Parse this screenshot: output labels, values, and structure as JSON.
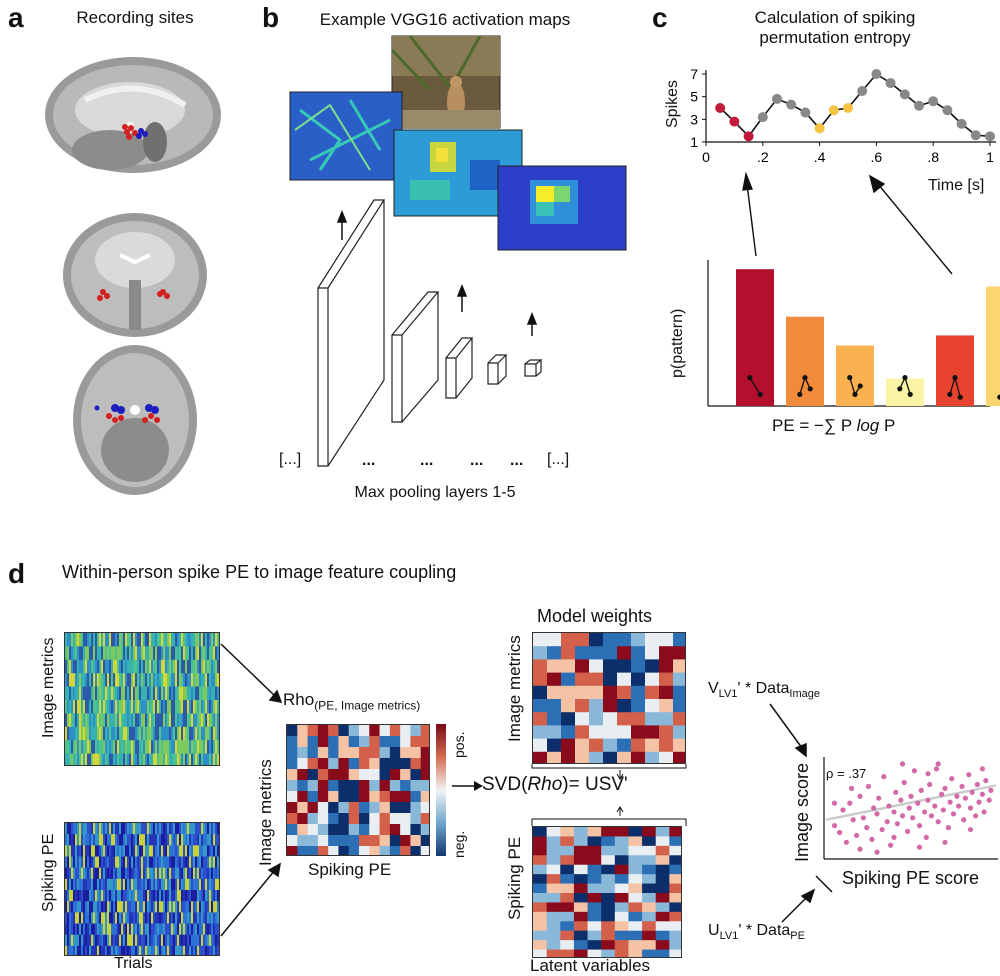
{
  "panels": {
    "a": {
      "letter": "a",
      "title": "Recording sites"
    },
    "b": {
      "letter": "b",
      "title": "Example VGG16 activation maps",
      "caption": "Max pooling layers 1-5",
      "bracket_left": "[...]",
      "bracket_right": "[...]",
      "dots": "..."
    },
    "c": {
      "letter": "c",
      "title_line1": "Calculation of spiking",
      "title_line2": "permutation entropy",
      "ylabel": "Spikes",
      "xlabel": "Time [s]",
      "bar_ylabel": "p(pattern)",
      "formula_pre": "PE = −∑ P ",
      "formula_log": "log",
      "formula_post": " P"
    },
    "d": {
      "letter": "d",
      "title": "Within-person spike PE to image feature coupling",
      "image_metrics": "Image metrics",
      "spiking_pe": "Spiking PE",
      "trials": "Trials",
      "rho_main": "Rho",
      "rho_sub": "(PE, Image metrics)",
      "pos": "pos.",
      "neg": "neg.",
      "svd_pre": "SVD(",
      "svd_rho": "Rho",
      "svd_post": ")= USV'",
      "model_weights": "Model weights",
      "latent_variables": "Latent variables",
      "v_pre": "V",
      "v_sub": "LV1",
      "v_mid": "' * Data",
      "v_sub2": "Image",
      "u_pre": "U",
      "u_sub": "LV1",
      "u_mid": "' * Data",
      "u_sub2": "PE",
      "image_score": "Image score",
      "spiking_pe_score": "Spiking PE score",
      "rho_value": "ρ = .37"
    }
  },
  "chart_data": [
    {
      "type": "line",
      "title": "Calculation of spiking permutation entropy",
      "xlabel": "Time [s]",
      "ylabel": "Spikes",
      "xlim": [
        0,
        1
      ],
      "ylim": [
        1,
        7
      ],
      "xticks": [
        "0",
        ".2",
        ".4",
        ".6",
        ".8",
        "1"
      ],
      "yticks": [
        "1",
        "3",
        "5",
        "7"
      ],
      "x": [
        0.05,
        0.1,
        0.15,
        0.2,
        0.25,
        0.3,
        0.35,
        0.4,
        0.45,
        0.5,
        0.55,
        0.6,
        0.65,
        0.7,
        0.75,
        0.8,
        0.85,
        0.9,
        0.95,
        1.0
      ],
      "y": [
        4,
        2.8,
        1.5,
        3.2,
        4.8,
        4.3,
        3.6,
        2.2,
        3.8,
        4.0,
        5.5,
        7.0,
        6.2,
        5.2,
        4.2,
        4.6,
        3.8,
        2.6,
        1.6,
        1.5
      ],
      "point_colors": [
        "#c21a3a",
        "#c21a3a",
        "#c21a3a",
        "#888888",
        "#888888",
        "#888888",
        "#888888",
        "#f5c542",
        "#f5c542",
        "#f5c542",
        "#888888",
        "#888888",
        "#888888",
        "#888888",
        "#888888",
        "#888888",
        "#888888",
        "#888888",
        "#888888",
        "#888888"
      ]
    },
    {
      "type": "bar",
      "ylabel": "p(pattern)",
      "values": [
        0.95,
        0.62,
        0.42,
        0.19,
        0.49,
        0.83
      ],
      "colors": [
        "#b4102e",
        "#f28a3b",
        "#f9b24f",
        "#fbf4a4",
        "#e8432e",
        "#fdd570"
      ]
    },
    {
      "type": "scatter",
      "xlabel": "Spiking PE score",
      "ylabel": "Image score",
      "annotation": "ρ = .37",
      "point_color": "#d26aa8",
      "fit_color": "#c8cdca",
      "fit": {
        "intercept": 0.38,
        "slope": 0.35
      },
      "points": [
        [
          0.05,
          0.32
        ],
        [
          0.08,
          0.25
        ],
        [
          0.1,
          0.48
        ],
        [
          0.12,
          0.15
        ],
        [
          0.14,
          0.55
        ],
        [
          0.16,
          0.38
        ],
        [
          0.18,
          0.22
        ],
        [
          0.2,
          0.62
        ],
        [
          0.22,
          0.4
        ],
        [
          0.24,
          0.3
        ],
        [
          0.25,
          0.72
        ],
        [
          0.27,
          0.18
        ],
        [
          0.28,
          0.5
        ],
        [
          0.3,
          0.44
        ],
        [
          0.31,
          0.6
        ],
        [
          0.33,
          0.28
        ],
        [
          0.34,
          0.82
        ],
        [
          0.36,
          0.36
        ],
        [
          0.37,
          0.52
        ],
        [
          0.38,
          0.12
        ],
        [
          0.4,
          0.46
        ],
        [
          0.41,
          0.66
        ],
        [
          0.42,
          0.34
        ],
        [
          0.44,
          0.58
        ],
        [
          0.45,
          0.42
        ],
        [
          0.46,
          0.76
        ],
        [
          0.48,
          0.26
        ],
        [
          0.49,
          0.5
        ],
        [
          0.5,
          0.62
        ],
        [
          0.51,
          0.4
        ],
        [
          0.52,
          0.88
        ],
        [
          0.54,
          0.55
        ],
        [
          0.55,
          0.32
        ],
        [
          0.56,
          0.68
        ],
        [
          0.58,
          0.46
        ],
        [
          0.59,
          0.2
        ],
        [
          0.6,
          0.58
        ],
        [
          0.61,
          0.74
        ],
        [
          0.62,
          0.42
        ],
        [
          0.64,
          0.52
        ],
        [
          0.65,
          0.9
        ],
        [
          0.66,
          0.36
        ],
        [
          0.68,
          0.64
        ],
        [
          0.69,
          0.48
        ],
        [
          0.7,
          0.7
        ],
        [
          0.72,
          0.3
        ],
        [
          0.73,
          0.56
        ],
        [
          0.74,
          0.8
        ],
        [
          0.75,
          0.44
        ],
        [
          0.77,
          0.62
        ],
        [
          0.78,
          0.52
        ],
        [
          0.8,
          0.72
        ],
        [
          0.81,
          0.38
        ],
        [
          0.82,
          0.6
        ],
        [
          0.84,
          0.84
        ],
        [
          0.85,
          0.5
        ],
        [
          0.86,
          0.66
        ],
        [
          0.88,
          0.42
        ],
        [
          0.89,
          0.74
        ],
        [
          0.9,
          0.56
        ],
        [
          0.92,
          0.64
        ],
        [
          0.93,
          0.46
        ],
        [
          0.94,
          0.78
        ],
        [
          0.96,
          0.58
        ],
        [
          0.97,
          0.68
        ],
        [
          0.3,
          0.05
        ],
        [
          0.55,
          0.1
        ],
        [
          0.15,
          0.7
        ],
        [
          0.45,
          0.95
        ],
        [
          0.7,
          0.15
        ],
        [
          0.85,
          0.28
        ],
        [
          0.6,
          0.85
        ],
        [
          0.2,
          0.08
        ],
        [
          0.4,
          0.2
        ],
        [
          0.66,
          0.95
        ],
        [
          0.05,
          0.55
        ],
        [
          0.92,
          0.9
        ]
      ]
    }
  ]
}
